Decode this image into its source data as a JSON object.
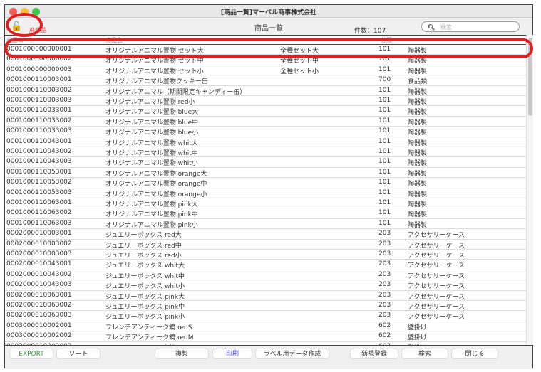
{
  "window": {
    "title": "[商品一覧]マーベル商事株式会社"
  },
  "toolbar": {
    "discard_label": "廃棄品",
    "page_title": "商品一覧",
    "count_label": "件数：",
    "count_value": "107",
    "search_placeholder": "検索",
    "colors": {
      "close": "#f25f58",
      "minimize": "#fbbe2e",
      "maximize": "#3cc94a",
      "discard": "#e05050"
    }
  },
  "columns": {
    "code": "商品コード",
    "name": "商品名",
    "class": "分類"
  },
  "rows": [
    [
      "0001000000000001",
      "オリジナルアニマル置物 セット大",
      "全種セット大",
      "101",
      "陶器製"
    ],
    [
      "0001000000000002",
      "オリジナルアニマル置物 セット中",
      "全種セット中",
      "101",
      "陶器製"
    ],
    [
      "0001000000000003",
      "オリジナルアニマル置物 セット小",
      "全種セット小",
      "101",
      "陶器製"
    ],
    [
      "0001000110003001",
      "オリジナルアニマル置物クッキー缶",
      "",
      "700",
      "食品類"
    ],
    [
      "0001000110003002",
      "オリジナルアニマル（期間限定キャンディー缶）",
      "",
      "101",
      "陶器製"
    ],
    [
      "0001000110003003",
      "オリジナルアニマル置物 red小",
      "",
      "101",
      "陶器製"
    ],
    [
      "0001000110033001",
      "オリジナルアニマル置物 blue大",
      "",
      "101",
      "陶器製"
    ],
    [
      "0001000110033002",
      "オリジナルアニマル置物 blue中",
      "",
      "101",
      "陶器製"
    ],
    [
      "0001000110033003",
      "オリジナルアニマル置物 blue小",
      "",
      "101",
      "陶器製"
    ],
    [
      "0001000110043001",
      "オリジナルアニマル置物 whit大",
      "",
      "101",
      "陶器製"
    ],
    [
      "0001000110043002",
      "オリジナルアニマル置物 whit中",
      "",
      "101",
      "陶器製"
    ],
    [
      "0001000110043003",
      "オリジナルアニマル置物 whit小",
      "",
      "101",
      "陶器製"
    ],
    [
      "0001000110053001",
      "オリジナルアニマル置物 orange大",
      "",
      "101",
      "陶器製"
    ],
    [
      "0001000110053002",
      "オリジナルアニマル置物 orange中",
      "",
      "101",
      "陶器製"
    ],
    [
      "0001000110053003",
      "オリジナルアニマル置物 orange小",
      "",
      "101",
      "陶器製"
    ],
    [
      "0001000110063001",
      "オリジナルアニマル置物 pink大",
      "",
      "101",
      "陶器製"
    ],
    [
      "0001000110063002",
      "オリジナルアニマル置物 pink中",
      "",
      "101",
      "陶器製"
    ],
    [
      "0001000110063003",
      "オリジナルアニマル置物 pink小",
      "",
      "101",
      "陶器製"
    ],
    [
      "0002000010003001",
      "ジュエリーボックス red大",
      "",
      "203",
      "アクセサリーケース"
    ],
    [
      "0002000010003002",
      "ジュエリーボックス red中",
      "",
      "203",
      "アクセサリーケース"
    ],
    [
      "0002000010003003",
      "ジュエリーボックス red小",
      "",
      "203",
      "アクセサリーケース"
    ],
    [
      "0002000010043001",
      "ジュエリーボックス whit大",
      "",
      "203",
      "アクセサリーケース"
    ],
    [
      "0002000010043002",
      "ジュエリーボックス whit中",
      "",
      "203",
      "アクセサリーケース"
    ],
    [
      "0002000010043003",
      "ジュエリーボックス whit小",
      "",
      "203",
      "アクセサリーケース"
    ],
    [
      "0002000010063001",
      "ジュエリーボックス pink大",
      "",
      "203",
      "アクセサリーケース"
    ],
    [
      "0002000010063002",
      "ジュエリーボックス pink中",
      "",
      "203",
      "アクセサリーケース"
    ],
    [
      "0002000010063003",
      "ジュエリーボックス pink小",
      "",
      "203",
      "アクセサリーケース"
    ],
    [
      "0003000010002001",
      "フレンチアンティーク鏡 redS",
      "",
      "602",
      "壁掛け"
    ],
    [
      "0003000010002002",
      "フレンチアンティーク鏡 redM",
      "",
      "602",
      "壁掛け"
    ],
    [
      "0003000010002003",
      "フレンチアンティーク鏡 redL",
      "",
      "602",
      "壁掛け"
    ]
  ],
  "footer": {
    "export": "EXPORT",
    "sort": "ソート",
    "duplicate": "複製",
    "print": "印刷",
    "label_data": "ラベル用データ作成",
    "new": "新規登録",
    "search": "検索",
    "close": "閉じる",
    "colors": {
      "export": "#3a9a3a",
      "print": "#4040e0"
    }
  },
  "annotation_color": "#e02020"
}
